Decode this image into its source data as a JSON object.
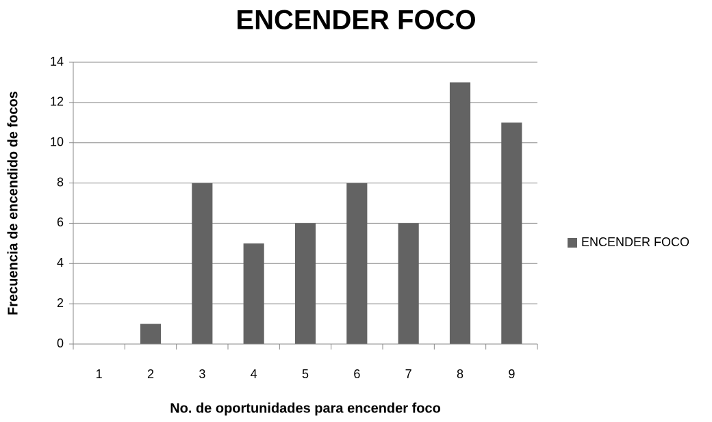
{
  "chart_data": {
    "type": "bar",
    "title": "ENCENDER FOCO",
    "x_label": "No. de  oportunidades para encender foco",
    "y_label": "Frecuencia de encendido de focos",
    "categories": [
      "1",
      "2",
      "3",
      "4",
      "5",
      "6",
      "7",
      "8",
      "9"
    ],
    "series": [
      {
        "name": "ENCENDER FOCO",
        "color": "#636363",
        "values": [
          0,
          1,
          8,
          5,
          6,
          8,
          6,
          13,
          11
        ]
      }
    ],
    "ylim": [
      0,
      14
    ],
    "yticks": [
      0,
      2,
      4,
      6,
      8,
      10,
      12,
      14
    ],
    "grid": true,
    "legend": "right"
  }
}
